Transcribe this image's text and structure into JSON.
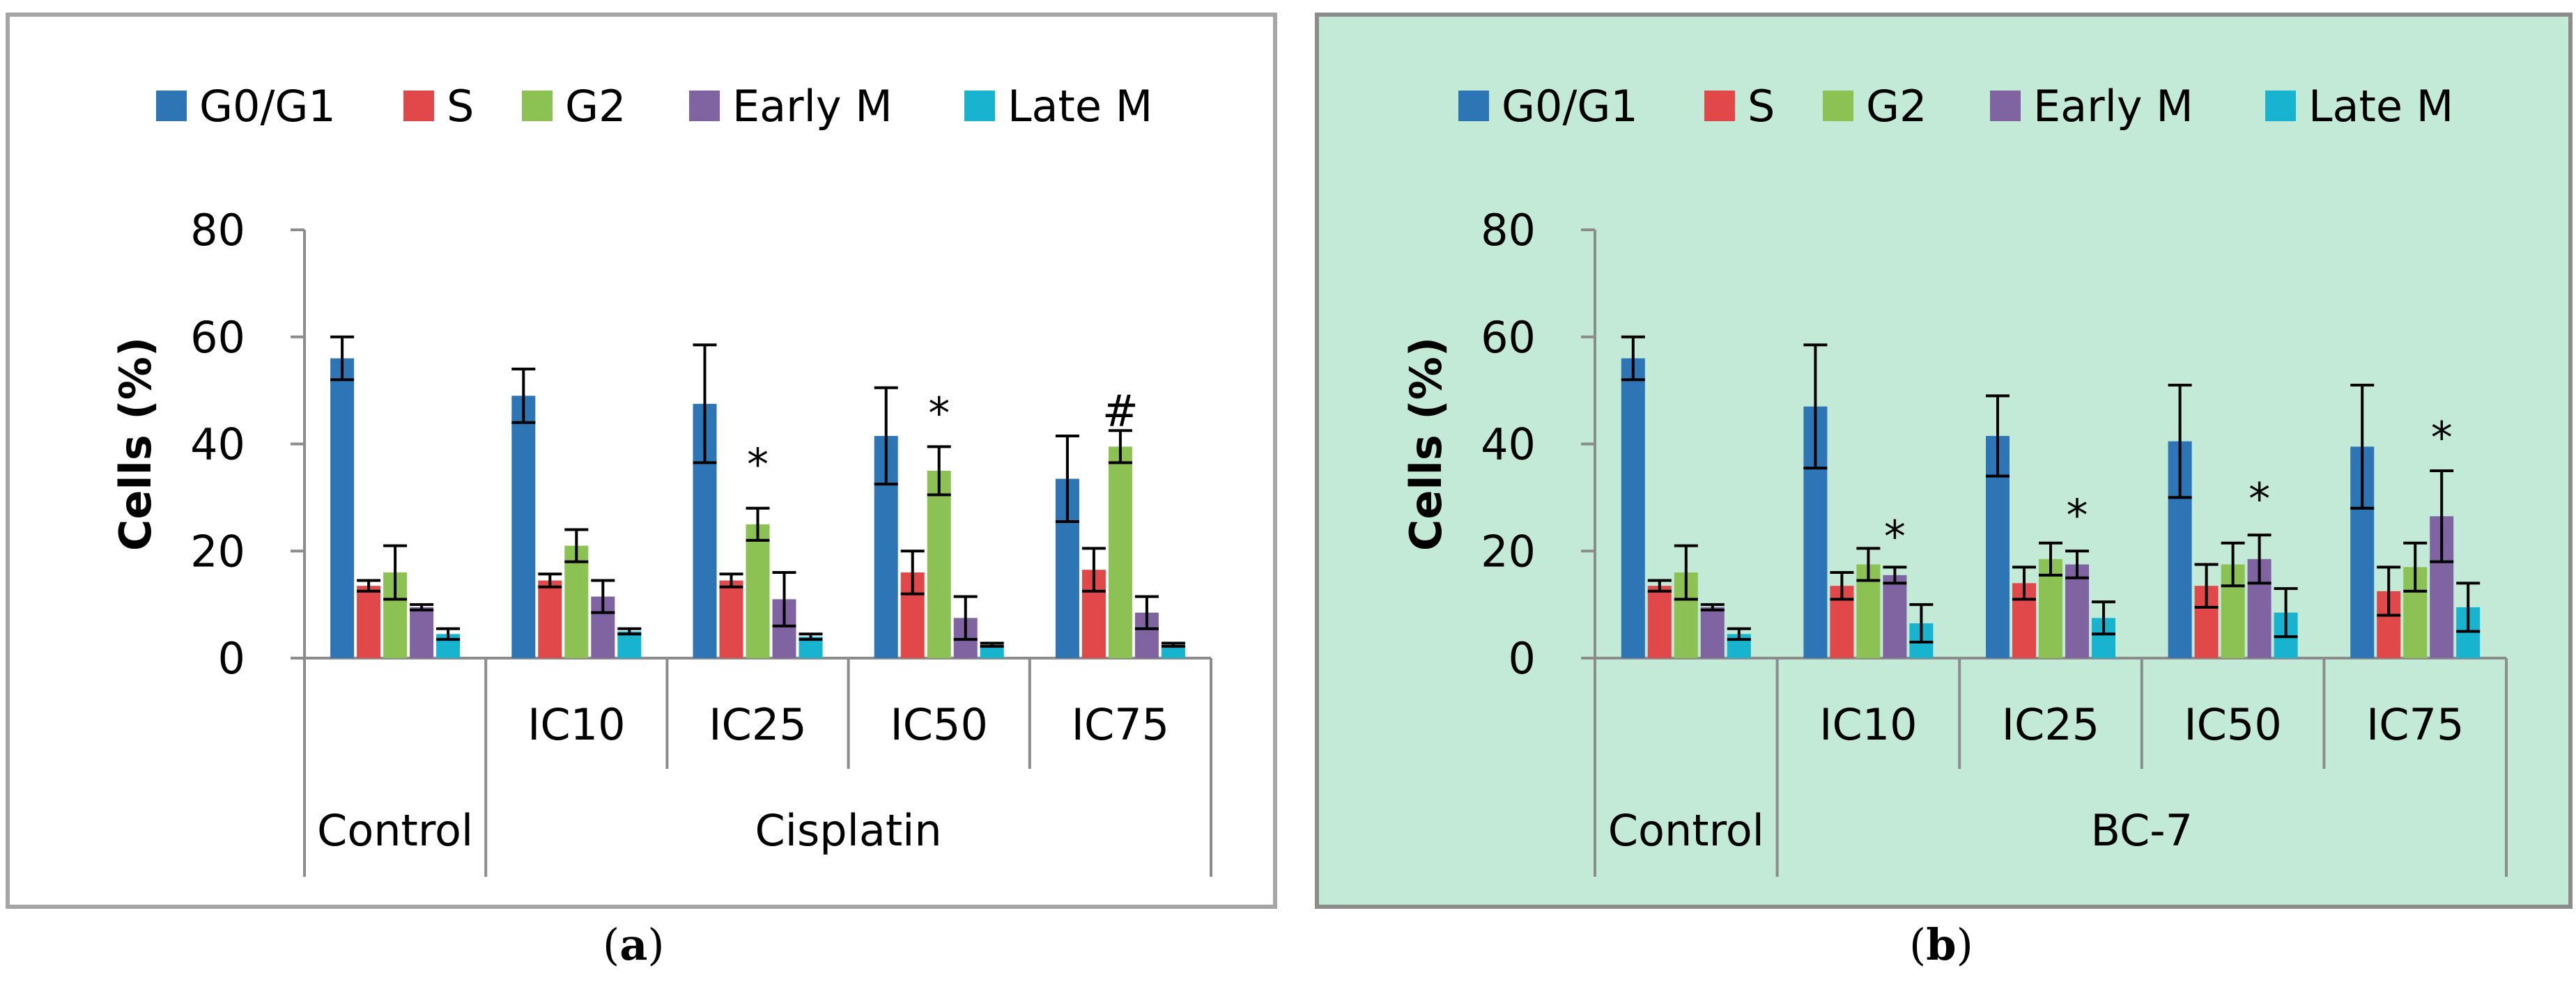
{
  "colors": {
    "series": [
      "#2e75b6",
      "#e0484a",
      "#8cc153",
      "#8064a2",
      "#17b3cf"
    ],
    "axis": "#8c8c8c",
    "error_bar": "#000000"
  },
  "legend": [
    "G0/G1",
    "S",
    "G2",
    "Early M",
    "Late M"
  ],
  "captions": [
    {
      "open": "(",
      "letter": "a",
      "close": ")"
    },
    {
      "open": "(",
      "letter": "b",
      "close": ")"
    }
  ],
  "chart_data": [
    {
      "type": "bar",
      "panel": "a",
      "ylabel": "Cells (%)",
      "ylim": [
        0,
        80
      ],
      "yticks": [
        0,
        20,
        40,
        60,
        80
      ],
      "categories": [
        "",
        "IC10",
        "IC25",
        "IC50",
        "IC75"
      ],
      "groups": [
        {
          "label": "Control",
          "span": [
            0,
            0
          ]
        },
        {
          "label": "Cisplatin",
          "span": [
            1,
            4
          ]
        }
      ],
      "series": [
        {
          "name": "G0/G1",
          "values": [
            56,
            49,
            47.5,
            41.5,
            33.5
          ],
          "errors": [
            4,
            5,
            11,
            9,
            8
          ]
        },
        {
          "name": "S",
          "values": [
            13.5,
            14.5,
            14.5,
            16,
            16.5
          ],
          "errors": [
            1,
            1.2,
            1.2,
            4,
            4
          ]
        },
        {
          "name": "G2",
          "values": [
            16,
            21,
            25,
            35,
            39.5
          ],
          "errors": [
            5,
            3,
            3,
            4.5,
            3
          ]
        },
        {
          "name": "Early M",
          "values": [
            9.5,
            11.5,
            11,
            7.5,
            8.5
          ],
          "errors": [
            0.5,
            3,
            5,
            4,
            3
          ]
        },
        {
          "name": "Late M",
          "values": [
            4.5,
            5,
            4,
            2.5,
            2.5
          ],
          "errors": [
            1,
            0.5,
            0.5,
            0.3,
            0.3
          ]
        }
      ],
      "annotations": [
        {
          "category_index": 2,
          "text": "*",
          "y": 36
        },
        {
          "category_index": 3,
          "text": "*",
          "y": 45.5
        },
        {
          "category_index": 4,
          "text": "#",
          "y": 46
        }
      ]
    },
    {
      "type": "bar",
      "panel": "b",
      "ylabel": "Cells (%)",
      "ylim": [
        0,
        80
      ],
      "yticks": [
        0,
        20,
        40,
        60,
        80
      ],
      "categories": [
        "",
        "IC10",
        "IC25",
        "IC50",
        "IC75"
      ],
      "groups": [
        {
          "label": "Control",
          "span": [
            0,
            0
          ]
        },
        {
          "label": "BC-7",
          "span": [
            1,
            4
          ]
        }
      ],
      "series": [
        {
          "name": "G0/G1",
          "values": [
            56,
            47,
            41.5,
            40.5,
            39.5
          ],
          "errors": [
            4,
            11.5,
            7.5,
            10.5,
            11.5
          ]
        },
        {
          "name": "S",
          "values": [
            13.5,
            13.5,
            14,
            13.5,
            12.5
          ],
          "errors": [
            1,
            2.5,
            3,
            4,
            4.5
          ]
        },
        {
          "name": "G2",
          "values": [
            16,
            17.5,
            18.5,
            17.5,
            17
          ],
          "errors": [
            5,
            3,
            3,
            4,
            4.5
          ]
        },
        {
          "name": "Early M",
          "values": [
            9.5,
            15.5,
            17.5,
            18.5,
            26.5
          ],
          "errors": [
            0.5,
            1.5,
            2.5,
            4.5,
            8.5
          ]
        },
        {
          "name": "Late M",
          "values": [
            4.5,
            6.5,
            7.5,
            8.5,
            9.5
          ],
          "errors": [
            1,
            3.5,
            3,
            4.5,
            4.5
          ]
        }
      ],
      "annotations": [
        {
          "category_index": 1,
          "text": "*",
          "y": 22.5
        },
        {
          "category_index": 2,
          "text": "*",
          "y": 26.5
        },
        {
          "category_index": 3,
          "text": "*",
          "y": 29.5
        },
        {
          "category_index": 4,
          "text": "*",
          "y": 41
        }
      ]
    }
  ]
}
